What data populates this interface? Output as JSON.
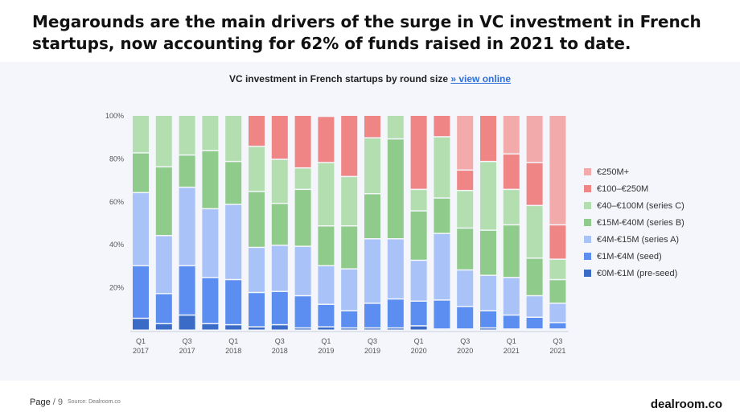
{
  "headline": "Megarounds are the main drivers of the surge in VC investment in French startups, now accounting for 62% of funds raised in 2021 to date.",
  "chart_title": "VC investment in French startups by round size",
  "chart_link": "» view online",
  "footer": {
    "page_label": "Page",
    "page_number": "/ 9",
    "source": "Source: Dealroom.co",
    "brand": "dealroom.co"
  },
  "chart_data": {
    "type": "bar",
    "stacked": true,
    "title": "VC investment in French startups by round size",
    "ylim": [
      0,
      100
    ],
    "y_ticks": [
      "20%",
      "40%",
      "60%",
      "80%",
      "100%"
    ],
    "x_tick_labels": [
      {
        "index": 0,
        "q": "Q1",
        "year": "2017"
      },
      {
        "index": 2,
        "q": "Q3",
        "year": "2017"
      },
      {
        "index": 4,
        "q": "Q1",
        "year": "2018"
      },
      {
        "index": 6,
        "q": "Q3",
        "year": "2018"
      },
      {
        "index": 8,
        "q": "Q1",
        "year": "2019"
      },
      {
        "index": 10,
        "q": "Q3",
        "year": "2019"
      },
      {
        "index": 12,
        "q": "Q1",
        "year": "2020"
      },
      {
        "index": 14,
        "q": "Q3",
        "year": "2020"
      },
      {
        "index": 16,
        "q": "Q1",
        "year": "2021"
      },
      {
        "index": 18,
        "q": "Q3",
        "year": "2021"
      }
    ],
    "categories": [
      "Q1 2017",
      "Q2 2017",
      "Q3 2017",
      "Q4 2017",
      "Q1 2018",
      "Q2 2018",
      "Q3 2018",
      "Q4 2018",
      "Q1 2019",
      "Q2 2019",
      "Q3 2019",
      "Q4 2019",
      "Q1 2020",
      "Q2 2020",
      "Q3 2020",
      "Q4 2020",
      "Q1 2021",
      "Q2 2021",
      "Q3 2021"
    ],
    "legend_position": "right",
    "series": [
      {
        "name": "€0M-€1M  (pre-seed)",
        "color": "#3a6bc7",
        "values": [
          5.5,
          3,
          7,
          3,
          2.5,
          1.5,
          2.5,
          1,
          1.5,
          1,
          1,
          1,
          2,
          0.5,
          0.5,
          1,
          0.5,
          0.5,
          0.5
        ]
      },
      {
        "name": "€1M-€4M (seed)",
        "color": "#5b8ef0",
        "values": [
          24.5,
          14,
          23,
          21.5,
          21,
          16,
          15.5,
          15,
          10.5,
          8,
          11.5,
          13.5,
          11.5,
          13.5,
          10.5,
          8,
          6.5,
          5.5,
          3
        ]
      },
      {
        "name": "€4M-€15M (series A)",
        "color": "#a9c2f7",
        "values": [
          34,
          27,
          36.5,
          32,
          35,
          21,
          21.5,
          23,
          18,
          19.5,
          30,
          28,
          19,
          31,
          17,
          16.5,
          17.5,
          10,
          9
        ]
      },
      {
        "name": "€15M-€40M (series B)",
        "color": "#8fcc8b",
        "values": [
          18.5,
          32,
          15,
          27,
          20,
          26,
          19.5,
          26.5,
          18.5,
          20,
          21,
          46.5,
          23,
          16.5,
          19.5,
          21,
          24.5,
          17.5,
          11
        ]
      },
      {
        "name": "€40–€100M (series C)",
        "color": "#b3dfb0",
        "values": [
          17.5,
          24,
          18.5,
          16.5,
          21.5,
          21,
          20.5,
          10,
          29.5,
          23,
          26,
          11,
          10,
          28.5,
          17.5,
          32,
          16.5,
          24.5,
          9.5
        ]
      },
      {
        "name": "€100–€250M",
        "color": "#ef8585",
        "values": [
          0,
          0,
          0,
          0,
          0,
          14.5,
          20.5,
          24.5,
          21.5,
          28.5,
          10.5,
          0,
          34.5,
          10,
          9.5,
          21.5,
          16.5,
          20,
          16
        ]
      },
      {
        "name": "€250M+",
        "color": "#f3aaaa",
        "values": [
          0,
          0,
          0,
          0,
          0,
          0,
          0,
          0,
          0,
          0,
          0,
          0,
          0,
          0,
          25.5,
          0,
          18,
          22,
          51
        ]
      }
    ]
  }
}
